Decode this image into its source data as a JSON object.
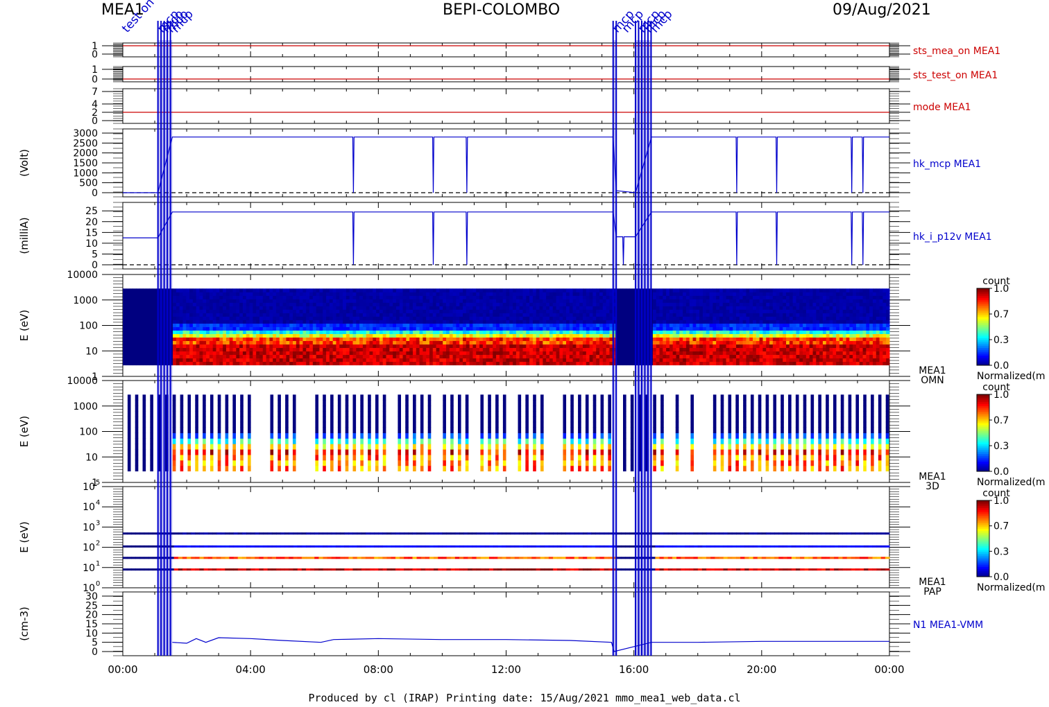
{
  "header": {
    "left": "MEA1",
    "center": "BEPI-COLOMBO",
    "right": "09/Aug/2021"
  },
  "footer": {
    "text": "Produced by cl (IRAP)   Printing date: 15/Aug/2021   mmo_mea1_web_data.cl"
  },
  "colors": {
    "axis": "#000000",
    "blue": "#0000cc",
    "red": "#cc0000"
  },
  "chart_data": {
    "type": "line",
    "x_ticks": [
      "00:00",
      "04:00",
      "08:00",
      "12:00",
      "16:00",
      "20:00",
      "00:00"
    ],
    "x_range_hours": [
      0,
      24
    ],
    "event_labels": [
      {
        "text": "test on",
        "time_h": 0.05
      },
      {
        "text": "mcp",
        "time_h": 1.15
      },
      {
        "text": "mcp",
        "time_h": 1.3
      },
      {
        "text": "mcp",
        "time_h": 1.45
      },
      {
        "text": "mcp",
        "time_h": 1.6
      },
      {
        "text": "mcp",
        "time_h": 15.4
      },
      {
        "text": "mcp",
        "time_h": 15.7
      },
      {
        "text": "mcp",
        "time_h": 16.2
      },
      {
        "text": "mcp",
        "time_h": 16.4
      },
      {
        "text": "mcp",
        "time_h": 16.6
      }
    ],
    "blackout_bands_h": [
      [
        1.1,
        1.55
      ],
      [
        15.35,
        15.45
      ],
      [
        16.05,
        16.55
      ]
    ],
    "panels": [
      {
        "id": "sts_mea_on",
        "kind": "line",
        "label": "sts_mea_on MEA1",
        "label_color": "#cc0000",
        "ylabel": "",
        "yticks": [
          "1",
          "0"
        ],
        "ylim": [
          0,
          1
        ],
        "series": [
          {
            "values": [
              {
                "x": 0,
                "y": 1
              },
              {
                "x": 24,
                "y": 1
              }
            ]
          }
        ]
      },
      {
        "id": "sts_test_on",
        "kind": "line",
        "label": "sts_test_on MEA1",
        "label_color": "#cc0000",
        "ylabel": "",
        "yticks": [
          "1",
          "0"
        ],
        "ylim": [
          0,
          1
        ],
        "series": [
          {
            "values": [
              {
                "x": 0,
                "y": 0
              },
              {
                "x": 24,
                "y": 0
              }
            ]
          }
        ]
      },
      {
        "id": "mode",
        "kind": "line",
        "label": "mode MEA1",
        "label_color": "#cc0000",
        "ylabel": "",
        "yticks": [
          "7",
          "4",
          "2",
          "0"
        ],
        "ylim": [
          0,
          7
        ],
        "series": [
          {
            "values": [
              {
                "x": 0,
                "y": 2
              },
              {
                "x": 24,
                "y": 2
              }
            ]
          }
        ]
      },
      {
        "id": "hk_mcp",
        "kind": "line",
        "label": "hk_mcp MEA1",
        "label_color": "#0000cc",
        "ylabel": "(Volt)",
        "yticks": [
          "3000",
          "2500",
          "2000",
          "1500",
          "1000",
          "500",
          "0"
        ],
        "ylim": [
          0,
          3000
        ],
        "dashed_zero": true,
        "series": [
          {
            "values": [
              {
                "x": 0,
                "y": 0
              },
              {
                "x": 1.1,
                "y": 0
              },
              {
                "x": 1.55,
                "y": 2800
              },
              {
                "x": 7.2,
                "y": 2800
              },
              {
                "x": 7.22,
                "y": 0
              },
              {
                "x": 7.24,
                "y": 2800
              },
              {
                "x": 9.7,
                "y": 2800
              },
              {
                "x": 9.72,
                "y": 0
              },
              {
                "x": 9.74,
                "y": 2800
              },
              {
                "x": 10.75,
                "y": 2800
              },
              {
                "x": 10.77,
                "y": 0
              },
              {
                "x": 10.79,
                "y": 2800
              },
              {
                "x": 15.35,
                "y": 2800
              },
              {
                "x": 15.45,
                "y": 100
              },
              {
                "x": 16.05,
                "y": 0
              },
              {
                "x": 16.55,
                "y": 2800
              },
              {
                "x": 19.2,
                "y": 2800
              },
              {
                "x": 19.22,
                "y": 0
              },
              {
                "x": 19.24,
                "y": 2800
              },
              {
                "x": 20.45,
                "y": 2800
              },
              {
                "x": 20.47,
                "y": 0
              },
              {
                "x": 20.49,
                "y": 2800
              },
              {
                "x": 22.8,
                "y": 2800
              },
              {
                "x": 22.82,
                "y": 0
              },
              {
                "x": 22.84,
                "y": 2800
              },
              {
                "x": 23.15,
                "y": 2800
              },
              {
                "x": 23.17,
                "y": 0
              },
              {
                "x": 23.19,
                "y": 2800
              },
              {
                "x": 24,
                "y": 2800
              }
            ]
          }
        ]
      },
      {
        "id": "hk_i_p12v",
        "kind": "line",
        "label": "hk_i_p12v MEA1",
        "label_color": "#0000cc",
        "ylabel": "(milliA)",
        "yticks": [
          "25",
          "20",
          "15",
          "10",
          "5",
          "0"
        ],
        "ylim": [
          0,
          27
        ],
        "dashed_zero": true,
        "series": [
          {
            "values": [
              {
                "x": 0,
                "y": 12.5
              },
              {
                "x": 1.1,
                "y": 12.5
              },
              {
                "x": 1.55,
                "y": 24.5
              },
              {
                "x": 7.2,
                "y": 24.5
              },
              {
                "x": 7.22,
                "y": 0
              },
              {
                "x": 7.24,
                "y": 24.5
              },
              {
                "x": 9.7,
                "y": 24.5
              },
              {
                "x": 9.72,
                "y": 0
              },
              {
                "x": 9.74,
                "y": 24.5
              },
              {
                "x": 10.75,
                "y": 24.5
              },
              {
                "x": 10.77,
                "y": 0
              },
              {
                "x": 10.79,
                "y": 24.5
              },
              {
                "x": 15.35,
                "y": 24.5
              },
              {
                "x": 15.45,
                "y": 13
              },
              {
                "x": 15.65,
                "y": 13
              },
              {
                "x": 15.67,
                "y": 0
              },
              {
                "x": 15.69,
                "y": 13
              },
              {
                "x": 16.05,
                "y": 13
              },
              {
                "x": 16.55,
                "y": 24.5
              },
              {
                "x": 19.2,
                "y": 24.5
              },
              {
                "x": 19.22,
                "y": 0
              },
              {
                "x": 19.24,
                "y": 24.5
              },
              {
                "x": 20.45,
                "y": 24.5
              },
              {
                "x": 20.47,
                "y": 0
              },
              {
                "x": 20.49,
                "y": 24.5
              },
              {
                "x": 22.8,
                "y": 24.5
              },
              {
                "x": 22.82,
                "y": 0
              },
              {
                "x": 22.84,
                "y": 24.5
              },
              {
                "x": 23.15,
                "y": 24.5
              },
              {
                "x": 23.17,
                "y": 0
              },
              {
                "x": 23.19,
                "y": 24.5
              },
              {
                "x": 24,
                "y": 24.5
              }
            ]
          }
        ]
      },
      {
        "id": "omn",
        "kind": "spectrogram",
        "label": "MEA1\nOMN",
        "ylabel": "E (eV)",
        "yticks": [
          "10000",
          "1000",
          "100",
          "10",
          "1"
        ],
        "ylim": [
          1,
          10000
        ],
        "log": true,
        "colorbar": {
          "title": "count",
          "ticks": [
            "1.0",
            "0.7",
            "0.3",
            "0.0"
          ],
          "caption": "Normalized(m"
        }
      },
      {
        "id": "3d",
        "kind": "spectrogram",
        "label": "MEA1\n3D",
        "ylabel": "E (eV)",
        "yticks": [
          "10000",
          "1000",
          "100",
          "10",
          "1"
        ],
        "ylim": [
          1,
          10000
        ],
        "log": true,
        "colorbar": {
          "title": "count",
          "ticks": [
            "1.0",
            "0.7",
            "0.3",
            "0.0"
          ],
          "caption": "Normalized(m"
        }
      },
      {
        "id": "pap",
        "kind": "spectrogram",
        "label": "MEA1\nPAP",
        "ylabel": "E (eV)",
        "yticks": [
          "10^5",
          "10^4",
          "10^3",
          "10^2",
          "10^1",
          "10^0"
        ],
        "ylim": [
          1,
          100000
        ],
        "log": true,
        "colorbar": {
          "title": "count",
          "ticks": [
            "1.0",
            "0.7",
            "0.3",
            "0.0"
          ],
          "caption": "Normalized(m"
        }
      },
      {
        "id": "n1",
        "kind": "line",
        "label": "N1 MEA1-VMM",
        "label_color": "#0000cc",
        "ylabel": "(cm-3)",
        "yticks": [
          "30",
          "25",
          "20",
          "15",
          "10",
          "5",
          "0"
        ],
        "ylim": [
          0,
          30
        ],
        "series": [
          {
            "values": [
              {
                "x": 1.55,
                "y": 5
              },
              {
                "x": 2.0,
                "y": 4.5
              },
              {
                "x": 2.3,
                "y": 7
              },
              {
                "x": 2.6,
                "y": 5
              },
              {
                "x": 3.0,
                "y": 7.5
              },
              {
                "x": 4.0,
                "y": 7
              },
              {
                "x": 5.0,
                "y": 6
              },
              {
                "x": 6.2,
                "y": 5
              },
              {
                "x": 6.6,
                "y": 6.5
              },
              {
                "x": 8.0,
                "y": 7
              },
              {
                "x": 10.0,
                "y": 6.5
              },
              {
                "x": 12.0,
                "y": 6.5
              },
              {
                "x": 14.0,
                "y": 6
              },
              {
                "x": 15.3,
                "y": 5
              },
              {
                "x": 15.38,
                "y": 0
              },
              {
                "x": 16.55,
                "y": 5
              },
              {
                "x": 18.0,
                "y": 5
              },
              {
                "x": 20.0,
                "y": 5.5
              },
              {
                "x": 22.0,
                "y": 5.5
              },
              {
                "x": 24,
                "y": 5.5
              }
            ]
          }
        ]
      }
    ]
  }
}
